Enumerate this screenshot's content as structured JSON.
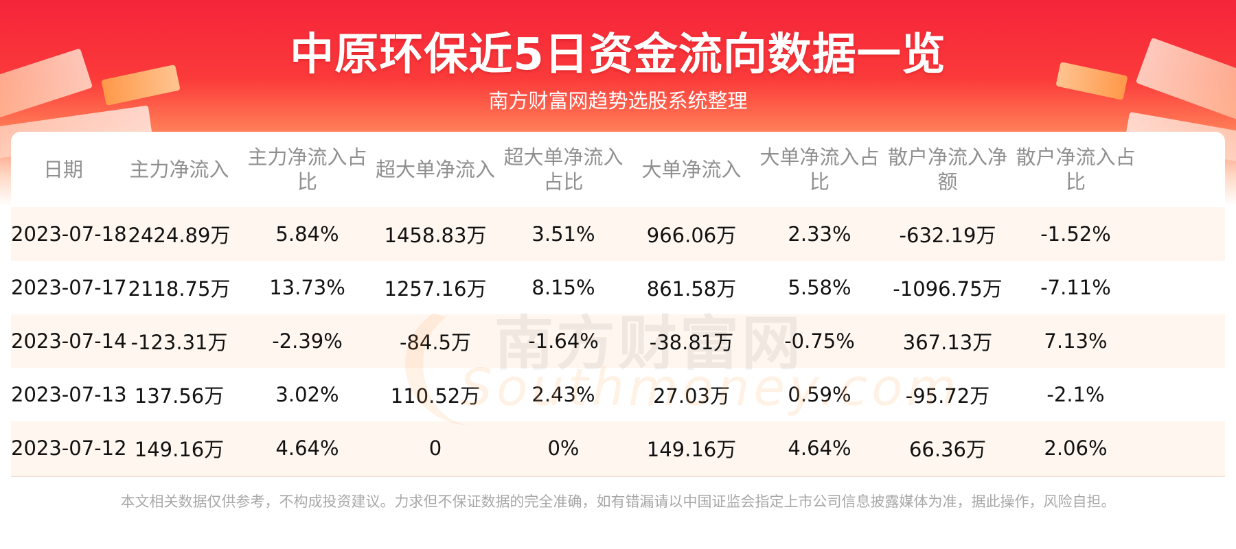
{
  "header": {
    "title": "中原环保近5日资金流向数据一览",
    "subtitle": "南方财富网趋势选股系统整理"
  },
  "watermark": {
    "cn": "南方财富网",
    "en": "Southmoney.com"
  },
  "table": {
    "columns": [
      "日期",
      "主力净流入",
      "主力净流入占比",
      "超大单净流入",
      "超大单净流入占比",
      "大单净流入",
      "大单净流入占比",
      "散户净流入净额",
      "散户净流入占比"
    ],
    "rows": [
      [
        "2023-07-18",
        "2424.89万",
        "5.84%",
        "1458.83万",
        "3.51%",
        "966.06万",
        "2.33%",
        "-632.19万",
        "-1.52%"
      ],
      [
        "2023-07-17",
        "2118.75万",
        "13.73%",
        "1257.16万",
        "8.15%",
        "861.58万",
        "5.58%",
        "-1096.75万",
        "-7.11%"
      ],
      [
        "2023-07-14",
        "-123.31万",
        "-2.39%",
        "-84.5万",
        "-1.64%",
        "-38.81万",
        "-0.75%",
        "367.13万",
        "7.13%"
      ],
      [
        "2023-07-13",
        "137.56万",
        "3.02%",
        "110.52万",
        "2.43%",
        "27.03万",
        "0.59%",
        "-95.72万",
        "-2.1%"
      ],
      [
        "2023-07-12",
        "149.16万",
        "4.64%",
        "0",
        "0%",
        "149.16万",
        "4.64%",
        "66.36万",
        "2.06%"
      ]
    ]
  },
  "footer": {
    "disclaimer": "本文相关数据仅供参考，不构成投资建议。力求但不保证数据的完全准确，如有错漏请以中国证监会指定上市公司信息披露媒体为准，据此操作，风险自担。"
  },
  "colors": {
    "banner_red": "#f5243a",
    "row_tint": "#fff6f0",
    "header_text": "#8f8f8f",
    "footer_text": "#a7a7a7"
  }
}
